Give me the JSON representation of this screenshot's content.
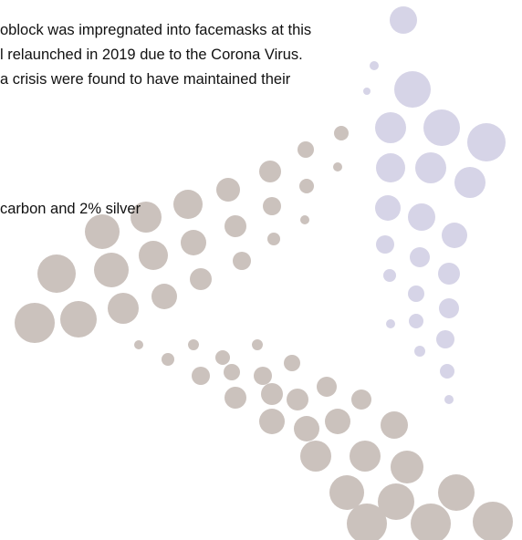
{
  "paragraph": {
    "lines": [
      "oblock was impregnated into facemasks at this",
      "l relaunched in 2019 due to the Corona Virus.",
      "a crisis were found to have maintained their"
    ]
  },
  "fragment": "carbon and 2% silver"
}
